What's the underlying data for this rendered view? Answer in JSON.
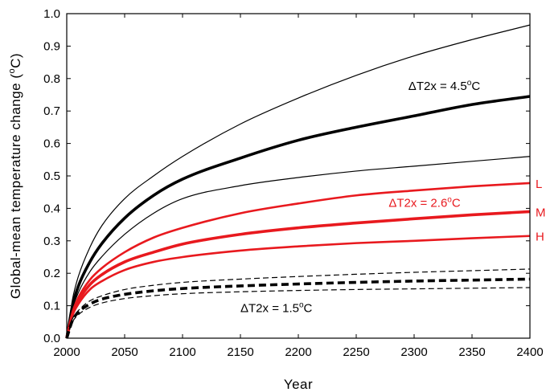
{
  "chart_data": {
    "type": "line",
    "xlabel": "Year",
    "ylabel": "Global-mean temperature change  (°C)",
    "xlim": [
      2000,
      2400
    ],
    "ylim": [
      0.0,
      1.0
    ],
    "x_ticks": [
      2000,
      2050,
      2100,
      2150,
      2200,
      2250,
      2300,
      2350,
      2400
    ],
    "y_ticks": [
      "0.0",
      "0.1",
      "0.2",
      "0.3",
      "0.4",
      "0.5",
      "0.6",
      "0.7",
      "0.8",
      "0.9",
      "1.0"
    ],
    "colors": {
      "black": "#000000",
      "red": "#e8191e"
    },
    "x": [
      2000,
      2005,
      2010,
      2020,
      2030,
      2050,
      2075,
      2100,
      2150,
      2200,
      2250,
      2300,
      2350,
      2400
    ],
    "series": [
      {
        "group": "4.5",
        "weight": "thin",
        "style": "solid",
        "color": "black",
        "values": [
          0,
          0.12,
          0.19,
          0.28,
          0.345,
          0.43,
          0.5,
          0.56,
          0.66,
          0.74,
          0.81,
          0.87,
          0.92,
          0.965
        ]
      },
      {
        "group": "4.5",
        "weight": "thick",
        "style": "solid",
        "color": "black",
        "values": [
          0,
          0.1,
          0.16,
          0.235,
          0.29,
          0.37,
          0.44,
          0.49,
          0.555,
          0.61,
          0.65,
          0.685,
          0.72,
          0.745
        ]
      },
      {
        "group": "4.5",
        "weight": "thin",
        "style": "solid",
        "color": "black",
        "values": [
          0,
          0.09,
          0.14,
          0.205,
          0.25,
          0.32,
          0.385,
          0.43,
          0.47,
          0.495,
          0.515,
          0.53,
          0.545,
          0.56
        ]
      },
      {
        "name": "L",
        "group": "2.6",
        "weight": "medium",
        "style": "solid",
        "color": "red",
        "values": [
          0,
          0.08,
          0.125,
          0.18,
          0.215,
          0.265,
          0.31,
          0.34,
          0.385,
          0.415,
          0.44,
          0.455,
          0.468,
          0.478
        ]
      },
      {
        "name": "M",
        "group": "2.6",
        "weight": "thick",
        "style": "solid",
        "color": "red",
        "values": [
          0,
          0.075,
          0.115,
          0.165,
          0.195,
          0.235,
          0.265,
          0.29,
          0.32,
          0.34,
          0.355,
          0.368,
          0.38,
          0.39
        ]
      },
      {
        "name": "H",
        "group": "2.6",
        "weight": "medium",
        "style": "solid",
        "color": "red",
        "values": [
          0,
          0.07,
          0.105,
          0.15,
          0.175,
          0.21,
          0.235,
          0.25,
          0.27,
          0.283,
          0.293,
          0.3,
          0.308,
          0.315
        ]
      },
      {
        "group": "1.5",
        "weight": "thin",
        "style": "dashed",
        "color": "black",
        "values": [
          0,
          0.06,
          0.085,
          0.115,
          0.13,
          0.15,
          0.163,
          0.172,
          0.182,
          0.19,
          0.197,
          0.203,
          0.208,
          0.213
        ]
      },
      {
        "group": "1.5",
        "weight": "thick",
        "style": "dashed",
        "color": "black",
        "values": [
          0,
          0.055,
          0.08,
          0.105,
          0.12,
          0.135,
          0.146,
          0.153,
          0.161,
          0.167,
          0.172,
          0.176,
          0.179,
          0.182
        ]
      },
      {
        "group": "1.5",
        "weight": "thin",
        "style": "dashed",
        "color": "black",
        "values": [
          0,
          0.05,
          0.072,
          0.095,
          0.108,
          0.122,
          0.131,
          0.137,
          0.143,
          0.147,
          0.15,
          0.152,
          0.154,
          0.156
        ]
      }
    ],
    "annotations": [
      {
        "name": "annotation-dt2x-4-5",
        "prefix": "ΔT2x = 4.5",
        "sup": "o",
        "suffix": "C",
        "color": "black",
        "x": 2295,
        "y": 0.765
      },
      {
        "name": "annotation-dt2x-2-6",
        "prefix": "ΔT2x = 2.6",
        "sup": "o",
        "suffix": "C",
        "color": "red",
        "x": 2278,
        "y": 0.405
      },
      {
        "name": "annotation-dt2x-1-5",
        "prefix": "ΔT2x = 1.5",
        "sup": "o",
        "suffix": "C",
        "color": "black",
        "x": 2150,
        "y": 0.08
      }
    ],
    "side_labels": [
      {
        "name": "label-l",
        "text": "L",
        "color": "red",
        "y": 0.478
      },
      {
        "name": "label-m",
        "text": "M",
        "color": "red",
        "y": 0.39
      },
      {
        "name": "label-h",
        "text": "H",
        "color": "red",
        "y": 0.315
      }
    ]
  }
}
